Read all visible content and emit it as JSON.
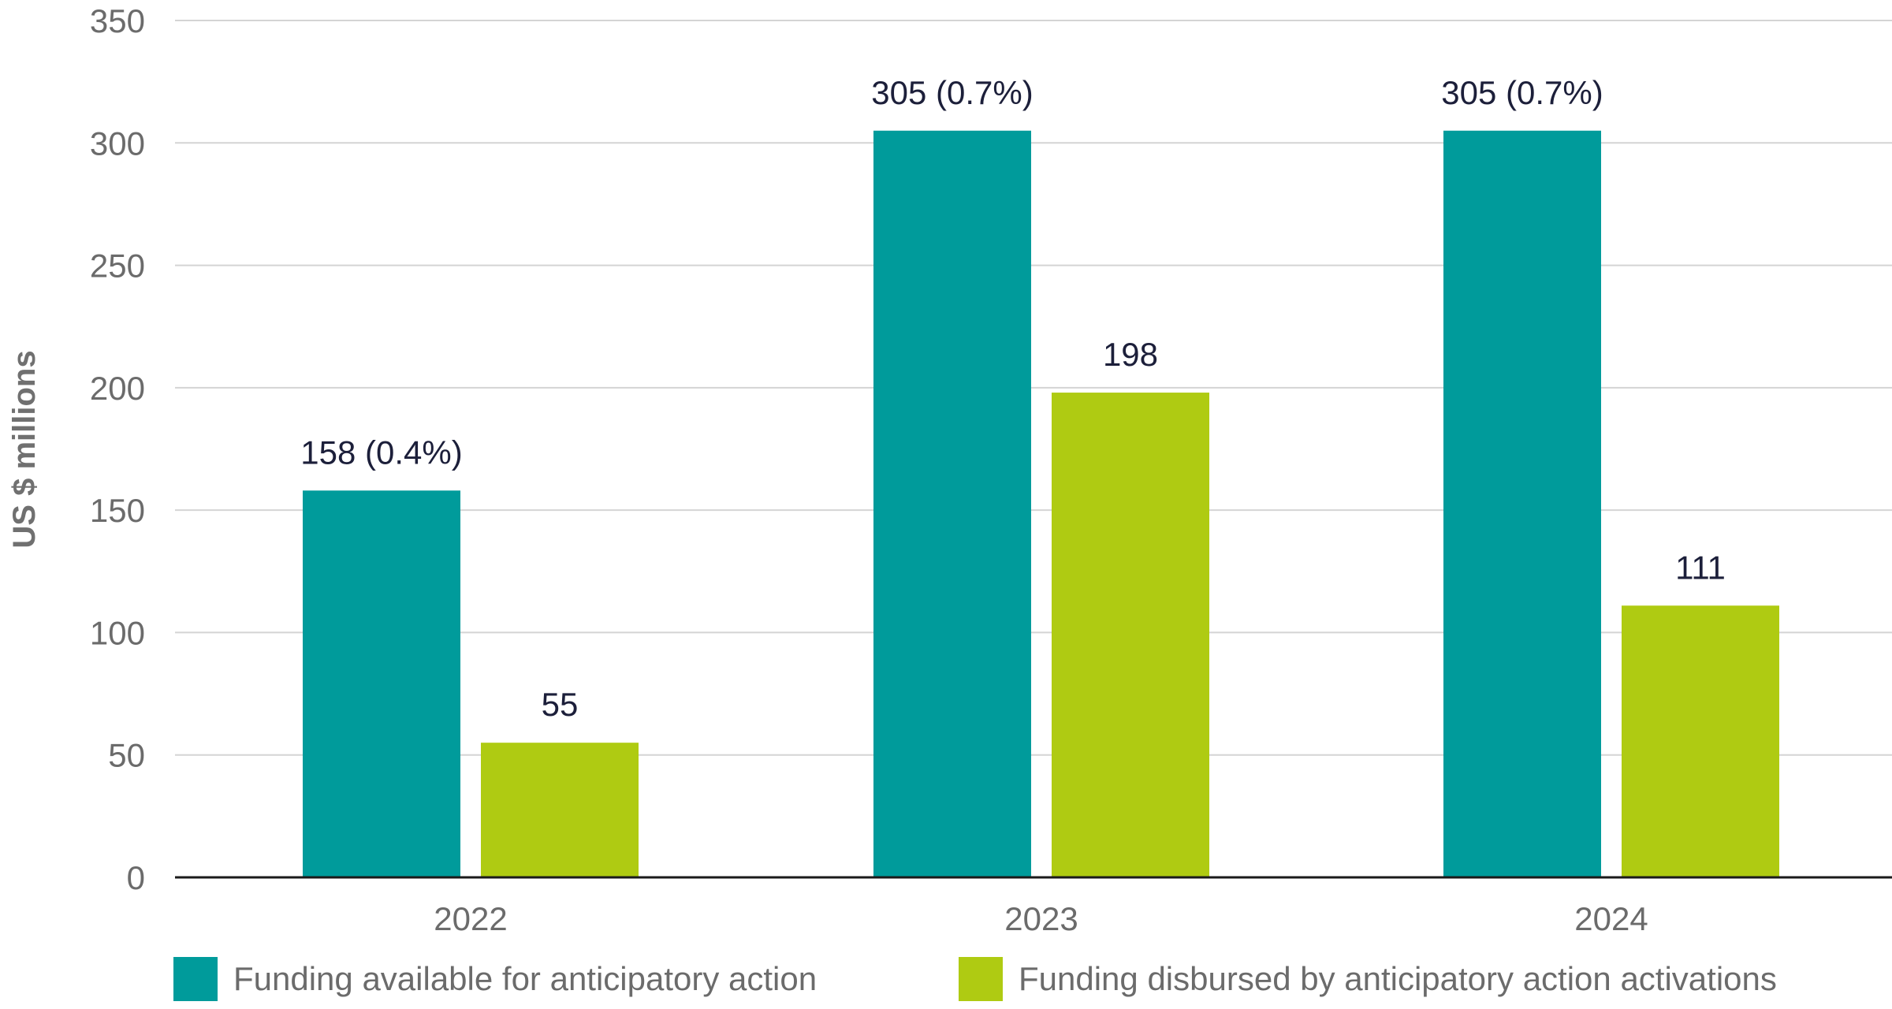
{
  "chart_data": {
    "type": "bar",
    "title": "",
    "xlabel": "",
    "ylabel": "US $ millions",
    "ylim": [
      0,
      350
    ],
    "yticks": [
      0,
      50,
      100,
      150,
      200,
      250,
      300,
      350
    ],
    "grid": true,
    "legend_position": "bottom",
    "categories": [
      "2022",
      "2023",
      "2024"
    ],
    "series": [
      {
        "name": "Funding available for anticipatory action",
        "color": "#009b9b",
        "values": [
          158,
          305,
          305
        ],
        "labels": [
          "158 (0.4%)",
          "305 (0.7%)",
          "305 (0.7%)"
        ]
      },
      {
        "name": "Funding disbursed by anticipatory action activations",
        "color": "#afcb12",
        "values": [
          55,
          198,
          111
        ],
        "labels": [
          "55",
          "198",
          "111"
        ]
      }
    ]
  }
}
